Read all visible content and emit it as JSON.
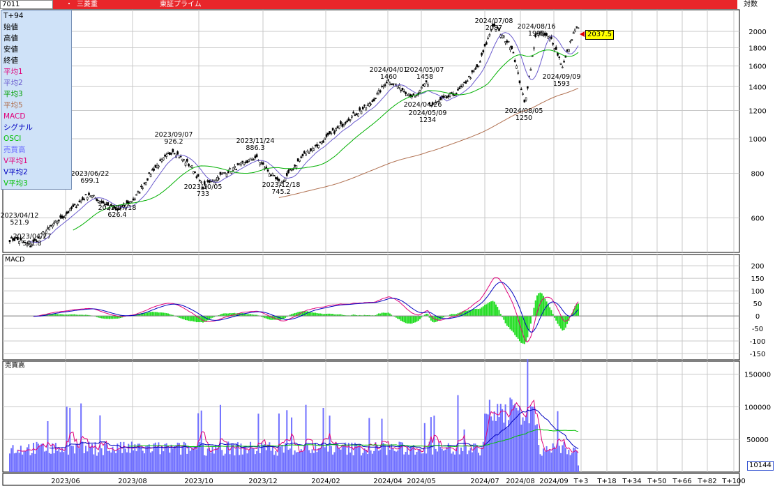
{
  "header": {
    "code": "7011",
    "dot": "・",
    "name": "三菱重",
    "market": "東証プライム",
    "scale": "対数"
  },
  "legend": [
    {
      "label": "T+94",
      "color": "#000000"
    },
    {
      "label": "始値",
      "color": "#000000"
    },
    {
      "label": "高値",
      "color": "#000000"
    },
    {
      "label": "安値",
      "color": "#000000"
    },
    {
      "label": "終値",
      "color": "#000000"
    },
    {
      "label": "平均1",
      "color": "#e0007a"
    },
    {
      "label": "平均2",
      "color": "#6a5acd"
    },
    {
      "label": "平均3",
      "color": "#00a000"
    },
    {
      "label": "平均5",
      "color": "#b07050"
    },
    {
      "label": "MACD",
      "color": "#e0007a"
    },
    {
      "label": "シグナル",
      "color": "#0000c0"
    },
    {
      "label": "OSCI",
      "color": "#00c000"
    },
    {
      "label": "売買高",
      "color": "#6a6aff"
    },
    {
      "label": "V平均1",
      "color": "#e0007a"
    },
    {
      "label": "V平均2",
      "color": "#0000c0"
    },
    {
      "label": "V平均3",
      "color": "#00c000"
    }
  ],
  "price_label": "2037.5",
  "volume_label": "10144",
  "panels": {
    "macd": "MACD",
    "volume": "売買高"
  },
  "chart_data": [
    {
      "type": "candlestick",
      "scale": "log",
      "ylim": [
        480,
        2300
      ],
      "yticks": [
        600,
        800,
        1000,
        1200,
        1400,
        1600,
        1800,
        2000
      ],
      "x_ticks": [
        "2023/06",
        "2023/08",
        "2023/10",
        "2023/12",
        "2024/02",
        "2024/04",
        "2024/05",
        "2024/07",
        "2024/08",
        "2024/09",
        "T+3",
        "T+18",
        "T+34",
        "T+50",
        "T+66",
        "T+82",
        "T+100"
      ],
      "path": [
        [
          "2023/04/12",
          521.9
        ],
        [
          "2023/04/27",
          501.8
        ],
        [
          "2023/05/10",
          545
        ],
        [
          "2023/05/25",
          590
        ],
        [
          "2023/06/22",
          699.1
        ],
        [
          "2023/07/18",
          626.4
        ],
        [
          "2023/08/03",
          680
        ],
        [
          "2023/08/20",
          820
        ],
        [
          "2023/09/07",
          926.2
        ],
        [
          "2023/09/25",
          830
        ],
        [
          "2023/10/05",
          733
        ],
        [
          "2023/10/25",
          800
        ],
        [
          "2023/11/24",
          886.3
        ],
        [
          "2023/12/18",
          745.2
        ],
        [
          "2024/01/10",
          900
        ],
        [
          "2024/02/01",
          1000
        ],
        [
          "2024/02/25",
          1150
        ],
        [
          "2024/03/15",
          1250
        ],
        [
          "2024/04/01",
          1460
        ],
        [
          "2024/04/26",
          1300
        ],
        [
          "2024/05/07",
          1458
        ],
        [
          "2024/05/09",
          1234
        ],
        [
          "2024/06/05",
          1350
        ],
        [
          "2024/06/25",
          1600
        ],
        [
          "2024/07/08",
          2087
        ],
        [
          "2024/07/25",
          1800
        ],
        [
          "2024/08/05",
          1250
        ],
        [
          "2024/08/16",
          1999
        ],
        [
          "2024/08/30",
          1900
        ],
        [
          "2024/09/09",
          1593
        ],
        [
          "2024/09/20",
          2037.5
        ]
      ],
      "annotations": [
        {
          "date": "2023/04/12",
          "value": "521.9"
        },
        {
          "date": "2023/04/27",
          "value": "501.8"
        },
        {
          "date": "2023/06/22",
          "value": "699.1"
        },
        {
          "date": "2023/07/18",
          "value": "626.4"
        },
        {
          "date": "2023/09/07",
          "value": "926.2"
        },
        {
          "date": "2023/10/05",
          "value": "733"
        },
        {
          "date": "2023/11/24",
          "value": "886.3"
        },
        {
          "date": "2023/12/18",
          "value": "745.2"
        },
        {
          "date": "2024/04/01",
          "value": "1460"
        },
        {
          "date": "2024/05/07",
          "value": "1458"
        },
        {
          "date": "2024/04/26",
          "value": "2024/04/26"
        },
        {
          "date": "2024/05/09",
          "value": "1234"
        },
        {
          "date": "2024/07/08",
          "value": "2087"
        },
        {
          "date": "2024/08/16",
          "value": "1999"
        },
        {
          "date": "2024/09/09",
          "value": "1593"
        },
        {
          "date": "2024/08/05",
          "value": "1250"
        }
      ],
      "last": 2037.5
    },
    {
      "type": "line",
      "ylim": [
        -175,
        245
      ],
      "yticks": [
        -150,
        -100,
        -50,
        0,
        50,
        100,
        150,
        200
      ],
      "series": [
        "MACD",
        "シグナル",
        "OSCI"
      ]
    },
    {
      "type": "bar",
      "ylim": [
        0,
        170000
      ],
      "yticks": [
        50000,
        100000,
        150000
      ],
      "series": [
        "売買高",
        "V平均1",
        "V平均2",
        "V平均3"
      ],
      "last": 10144
    }
  ]
}
